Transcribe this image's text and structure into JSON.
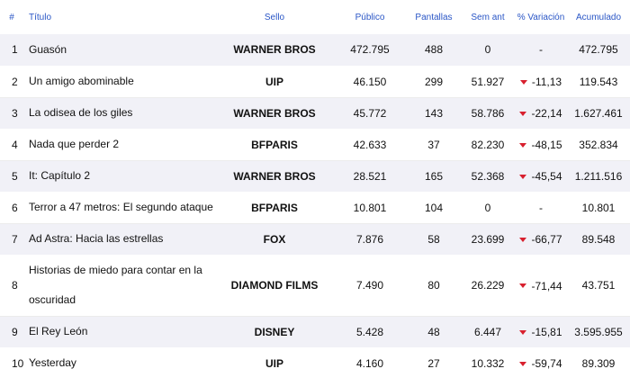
{
  "headers": {
    "num": "#",
    "title": "Título",
    "label": "Sello",
    "public": "Público",
    "screens": "Pantallas",
    "prev_week": "Sem ant",
    "variation": "% Variación",
    "accumulated": "Acumulado"
  },
  "colors": {
    "header_text": "#2a56c6",
    "row_shade": "#f1f1f7",
    "down_arrow": "#d8202e"
  },
  "rows": [
    {
      "num": "1",
      "title": "Guasón",
      "label": "WARNER BROS",
      "public": "472.795",
      "screens": "488",
      "prev_week": "0",
      "variation": "-",
      "trend": "none",
      "accumulated": "472.795"
    },
    {
      "num": "2",
      "title": "Un amigo abominable",
      "label": "UIP",
      "public": "46.150",
      "screens": "299",
      "prev_week": "51.927",
      "variation": "-11,13",
      "trend": "down",
      "accumulated": "119.543"
    },
    {
      "num": "3",
      "title": "La odisea de los giles",
      "label": "WARNER BROS",
      "public": "45.772",
      "screens": "143",
      "prev_week": "58.786",
      "variation": "-22,14",
      "trend": "down",
      "accumulated": "1.627.461"
    },
    {
      "num": "4",
      "title": "Nada que perder 2",
      "label": "BFPARIS",
      "public": "42.633",
      "screens": "37",
      "prev_week": "82.230",
      "variation": "-48,15",
      "trend": "down",
      "accumulated": "352.834"
    },
    {
      "num": "5",
      "title": "It: Capítulo 2",
      "label": "WARNER BROS",
      "public": "28.521",
      "screens": "165",
      "prev_week": "52.368",
      "variation": "-45,54",
      "trend": "down",
      "accumulated": "1.211.516"
    },
    {
      "num": "6",
      "title": "Terror a 47 metros: El segundo ataque",
      "label": "BFPARIS",
      "public": "10.801",
      "screens": "104",
      "prev_week": "0",
      "variation": "-",
      "trend": "none",
      "accumulated": "10.801"
    },
    {
      "num": "7",
      "title": "Ad Astra: Hacia las estrellas",
      "label": "FOX",
      "public": "7.876",
      "screens": "58",
      "prev_week": "23.699",
      "variation": "-66,77",
      "trend": "down",
      "accumulated": "89.548"
    },
    {
      "num": "8",
      "title": "Historias de miedo para contar en la oscuridad",
      "label": "DIAMOND FILMS",
      "public": "7.490",
      "screens": "80",
      "prev_week": "26.229",
      "variation": "-71,44",
      "trend": "down",
      "accumulated": "43.751"
    },
    {
      "num": "9",
      "title": "El Rey León",
      "label": "DISNEY",
      "public": "5.428",
      "screens": "48",
      "prev_week": "6.447",
      "variation": "-15,81",
      "trend": "down",
      "accumulated": "3.595.955"
    },
    {
      "num": "10",
      "title": "Yesterday",
      "label": "UIP",
      "public": "4.160",
      "screens": "27",
      "prev_week": "10.332",
      "variation": "-59,74",
      "trend": "down",
      "accumulated": "89.309"
    }
  ]
}
